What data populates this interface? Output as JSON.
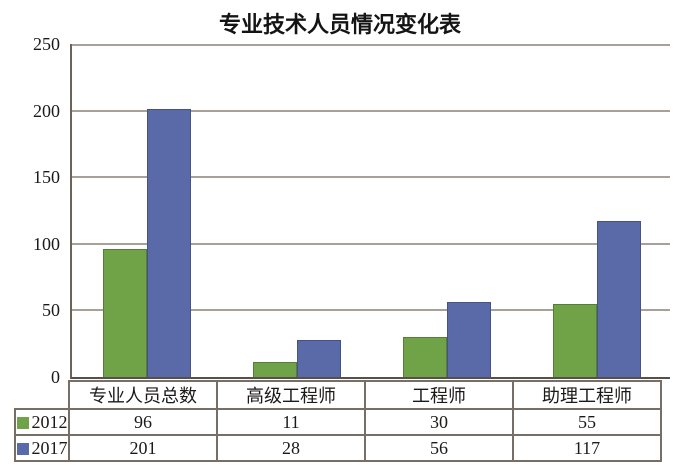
{
  "chart_data": {
    "type": "bar",
    "title": "专业技术人员情况变化表",
    "categories": [
      "专业人员总数",
      "高级工程师",
      "工程师",
      "助理工程师"
    ],
    "series": [
      {
        "name": "2012",
        "color": "#70A247",
        "values": [
          96,
          11,
          30,
          55
        ]
      },
      {
        "name": "2017",
        "color": "#5A69A8",
        "values": [
          201,
          28,
          56,
          117
        ]
      }
    ],
    "xlabel": "",
    "ylabel": "",
    "ylim": [
      0,
      250
    ],
    "yticks": [
      0,
      50,
      100,
      150,
      200,
      250
    ],
    "grid": true,
    "gridline_color": "#A9A098",
    "axis_color": "#575049",
    "table_border_color": "#776F67",
    "background_color": "#FFFFFF",
    "legend_position": "table-rows-left"
  }
}
